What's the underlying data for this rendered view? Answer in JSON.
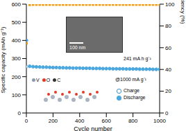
{
  "chart_data": {
    "type": "scatter",
    "x_label": "Cycle number",
    "y_label": "Specific capacity (mAh g⁻¹)",
    "y2_label": "Coulombic efficiency (%)",
    "xlim": [
      0,
      1000
    ],
    "xticks": [
      0,
      200,
      400,
      600,
      800,
      1000
    ],
    "ylim": [
      0,
      600
    ],
    "yticks": [
      0,
      100,
      200,
      300,
      400,
      500,
      600
    ],
    "y2lim": [
      0,
      100
    ],
    "y2ticks": [
      0,
      20,
      40,
      60,
      80,
      100
    ],
    "x": [
      1,
      25,
      50,
      75,
      100,
      125,
      150,
      175,
      200,
      225,
      250,
      275,
      300,
      325,
      350,
      375,
      400,
      425,
      450,
      475,
      500,
      525,
      550,
      575,
      600,
      625,
      650,
      675,
      700,
      725,
      750,
      775,
      800,
      825,
      850,
      875,
      900,
      925,
      950,
      975,
      1000
    ],
    "series": [
      {
        "name": "Charge",
        "color": "#3a8fd0",
        "marker": "hollow",
        "values": [
          255,
          257,
          255,
          254,
          253,
          252,
          252,
          251,
          250,
          250,
          249,
          249,
          248,
          248,
          247,
          247,
          247,
          246,
          246,
          246,
          245,
          245,
          245,
          244,
          244,
          244,
          243,
          243,
          243,
          243,
          242,
          242,
          242,
          242,
          241,
          241,
          241,
          241,
          240,
          240,
          240
        ]
      },
      {
        "name": "Discharge",
        "color": "#4aa8e0",
        "marker": "filled",
        "values": [
          400,
          258,
          256,
          255,
          254,
          253,
          253,
          252,
          251,
          251,
          250,
          250,
          249,
          249,
          248,
          248,
          248,
          247,
          247,
          247,
          246,
          246,
          246,
          245,
          245,
          245,
          244,
          244,
          244,
          244,
          243,
          243,
          243,
          243,
          242,
          242,
          242,
          242,
          241,
          241,
          241
        ]
      },
      {
        "name": "Coulombic efficiency",
        "color": "#f39c12",
        "marker": "square",
        "axis": "y2",
        "values": [
          64,
          99.4,
          99.6,
          99.6,
          99.6,
          99.6,
          99.6,
          99.6,
          99.6,
          99.6,
          99.6,
          99.6,
          99.6,
          99.6,
          99.6,
          99.6,
          99.6,
          99.6,
          99.6,
          99.6,
          99.6,
          99.6,
          99.6,
          99.6,
          99.6,
          99.6,
          99.6,
          99.6,
          99.6,
          99.6,
          99.6,
          99.6,
          99.6,
          99.6,
          99.6,
          99.6,
          99.6,
          99.6,
          99.6,
          99.6,
          99.6
        ]
      }
    ],
    "legend": "bottom",
    "annotations": [
      "241 mA h g⁻¹",
      "@1000 mA g⁻¹",
      "100 nm",
      "V",
      "O",
      "C"
    ]
  }
}
